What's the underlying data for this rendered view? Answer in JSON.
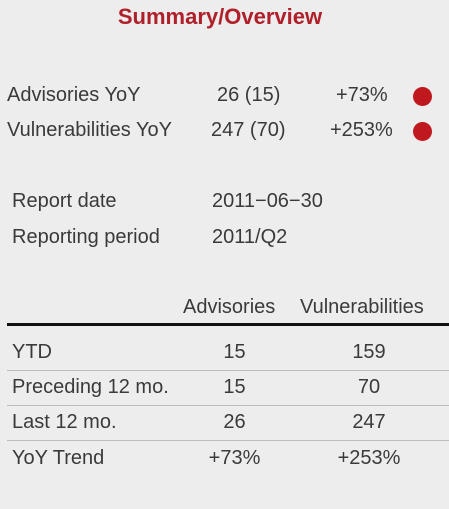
{
  "title": "Summary/Overview",
  "yoy": [
    {
      "label": "Advisories YoY",
      "value": "26 (15)",
      "change": "+73%",
      "status_color": "#c0181f"
    },
    {
      "label": "Vulnerabilities YoY",
      "value": "247 (70)",
      "change": "+253%",
      "status_color": "#c0181f"
    }
  ],
  "report": {
    "date_label": "Report date",
    "date_value": "2011−06−30",
    "period_label": "Reporting period",
    "period_value": "2011/Q2"
  },
  "table": {
    "headers": [
      "",
      "Advisories",
      "Vulnerabilities"
    ],
    "rows": [
      [
        "YTD",
        "15",
        "159"
      ],
      [
        "Preceding 12 mo.",
        "15",
        "70"
      ],
      [
        "Last 12 mo.",
        "26",
        "247"
      ],
      [
        "YoY Trend",
        "+73%",
        "+253%"
      ]
    ]
  }
}
